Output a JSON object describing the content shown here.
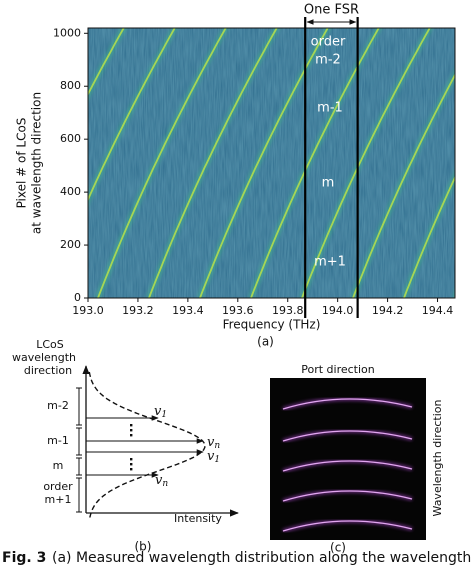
{
  "chart_data": {
    "type": "heatmap",
    "x_label": "Frequency (THz)",
    "y_label_lines": [
      "Pixel # of LCoS",
      "at wavelength direction"
    ],
    "xlim": [
      193.0,
      194.47
    ],
    "ylim": [
      0,
      1020
    ],
    "xticks": [
      {
        "value": 193.0,
        "label": "193.0"
      },
      193.2,
      193.4,
      193.6,
      193.8,
      {
        "value": 194.0,
        "label": "194.0"
      },
      194.2,
      194.4
    ],
    "yticks": [
      0,
      200,
      400,
      600,
      800,
      1000
    ],
    "fsr_lines": [
      193.87,
      194.08
    ],
    "fsr_label": "One FSR",
    "annotations": [
      "order",
      "m-2",
      "m-1",
      "m",
      "m+1"
    ],
    "panel_label": "(a)"
  },
  "panel_b": {
    "axis_title": [
      "LCoS",
      "wavelength",
      "direction"
    ],
    "orders": [
      "m-2",
      "m-1",
      "m",
      "order",
      "m+1"
    ],
    "nu_labels": [
      {
        "base": "v",
        "sub": "1"
      },
      {
        "base": "v",
        "sub": "n"
      },
      {
        "base": "v",
        "sub": "1"
      },
      {
        "base": "v",
        "sub": "n"
      }
    ],
    "x_label": "Intensity",
    "panel_label": "(b)"
  },
  "panel_c": {
    "top_label": "Port direction",
    "side_label": "Wavelength direction",
    "panel_label": "(c)"
  },
  "caption": {
    "figure": "Fig. 3",
    "text": "(a) Measured wavelength distribution along the wavelength direction"
  }
}
